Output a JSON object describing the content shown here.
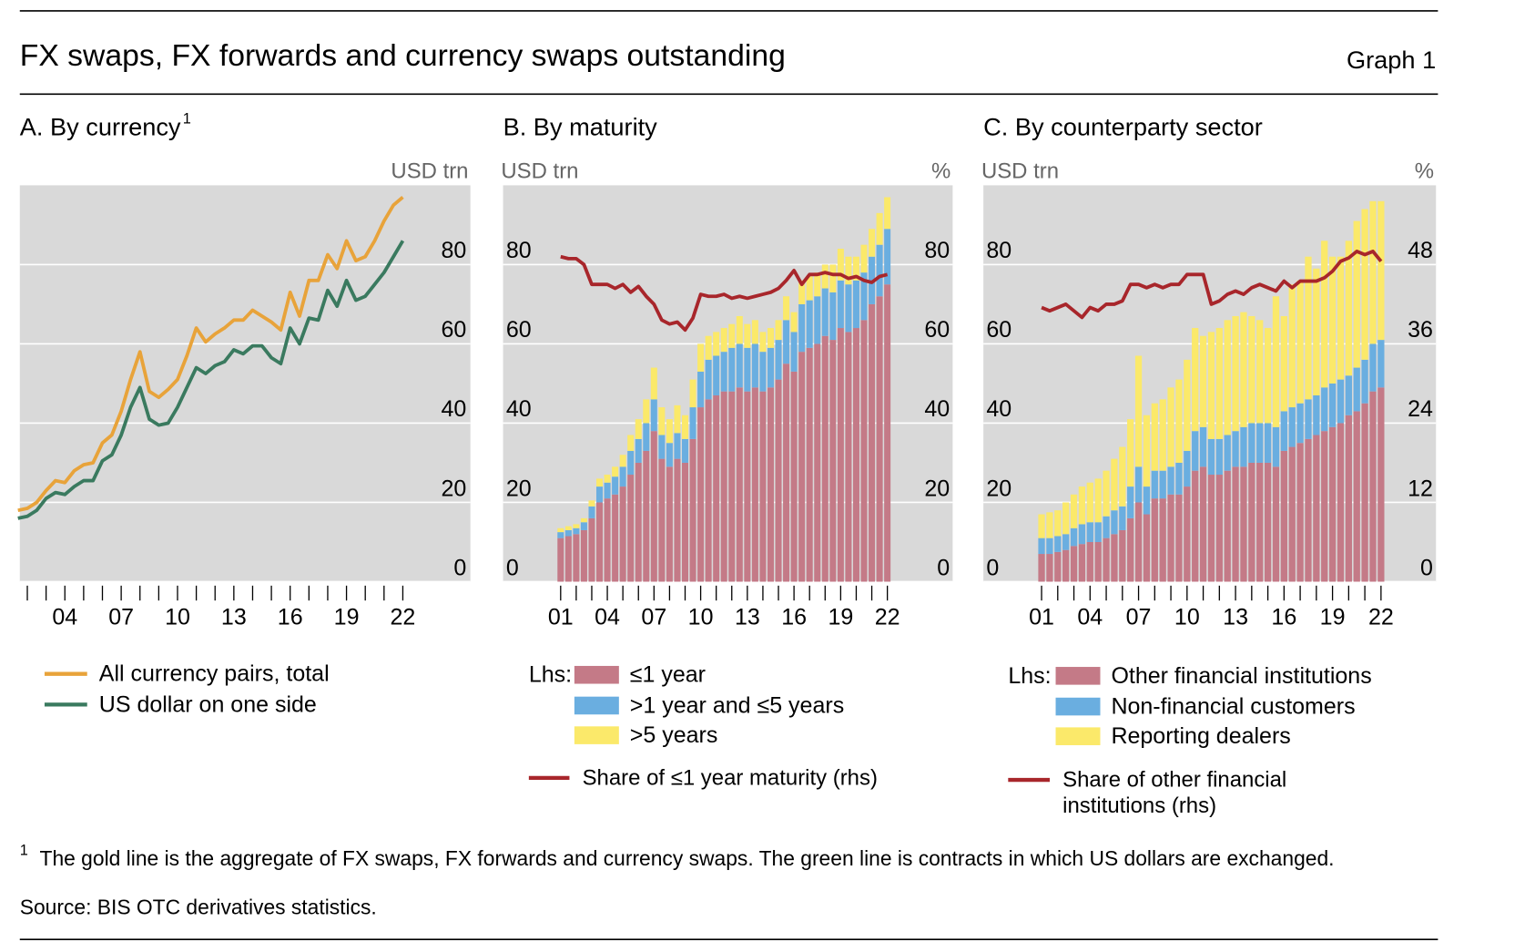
{
  "header": {
    "title": "FX swaps, FX forwards and currency swaps outstanding",
    "graph_label": "Graph 1"
  },
  "chart_data": [
    {
      "type": "line",
      "title": "A. By currency",
      "title_note": "1",
      "ylabel": "USD trn",
      "x": [
        2001.5,
        2002,
        2002.5,
        2003,
        2003.5,
        2004,
        2004.5,
        2005,
        2005.5,
        2006,
        2006.5,
        2007,
        2007.5,
        2008,
        2008.5,
        2009,
        2009.5,
        2010,
        2010.5,
        2011,
        2011.5,
        2012,
        2012.5,
        2013,
        2013.5,
        2014,
        2014.5,
        2015,
        2015.5,
        2016,
        2016.5,
        2017,
        2017.5,
        2018,
        2018.5,
        2019,
        2019.5,
        2020,
        2020.5,
        2021,
        2021.5,
        2022
      ],
      "xlim": [
        2001.6,
        2025.6
      ],
      "xticks": [
        {
          "value": 2004,
          "label": "04"
        },
        {
          "value": 2007,
          "label": "07"
        },
        {
          "value": 2010,
          "label": "10"
        },
        {
          "value": 2013,
          "label": "13"
        },
        {
          "value": 2016,
          "label": "16"
        },
        {
          "value": 2019,
          "label": "19"
        },
        {
          "value": 2022,
          "label": "22"
        }
      ],
      "xminor_ticks": [
        2002,
        2003,
        2005,
        2006,
        2008,
        2009,
        2011,
        2012,
        2014,
        2015,
        2017,
        2018,
        2020,
        2021
      ],
      "ylim": [
        0,
        100
      ],
      "yticks": [
        0,
        20,
        40,
        60,
        80
      ],
      "grid": true,
      "series": [
        {
          "name": "All currency pairs, total",
          "type": "line",
          "color": "#e8a33a",
          "values": [
            18,
            18.5,
            20,
            23,
            25.5,
            25,
            28,
            29.5,
            30,
            35,
            37,
            43,
            51,
            58,
            48,
            46.5,
            48.5,
            51,
            57,
            64,
            60.5,
            62.5,
            64,
            66,
            66,
            68.5,
            67,
            65.5,
            63.5,
            73,
            67,
            76,
            76,
            82.5,
            79,
            86,
            81,
            82,
            86,
            91,
            95,
            97
          ]
        },
        {
          "name": "US dollar on one side",
          "type": "line",
          "color": "#3a7a5f",
          "values": [
            16,
            16.5,
            18,
            21,
            22.5,
            22,
            24,
            25.5,
            25.5,
            30.5,
            32,
            37,
            44,
            49,
            41,
            39.5,
            40,
            44,
            49,
            54,
            52.5,
            54.5,
            55.5,
            58.5,
            57.5,
            59.5,
            59.5,
            56.5,
            55,
            64,
            60,
            66.5,
            66,
            73.5,
            69.5,
            76,
            71,
            72,
            75,
            78,
            82,
            86
          ]
        }
      ]
    },
    {
      "type": "bar",
      "stacked": true,
      "title": "B. By maturity",
      "ylabel": "USD trn",
      "y2label": "%",
      "legend_prefix": "Lhs:",
      "x": [
        2001,
        2001.5,
        2002,
        2002.5,
        2003,
        2003.5,
        2004,
        2004.5,
        2005,
        2005.5,
        2006,
        2006.5,
        2007,
        2007.5,
        2008,
        2008.5,
        2009,
        2009.5,
        2010,
        2010.5,
        2011,
        2011.5,
        2012,
        2012.5,
        2013,
        2013.5,
        2014,
        2014.5,
        2015,
        2015.5,
        2016,
        2016.5,
        2017,
        2017.5,
        2018,
        2018.5,
        2019,
        2019.5,
        2020,
        2020.5,
        2021,
        2021.5,
        2022
      ],
      "xlim": [
        1997.3,
        2026.2
      ],
      "xticks": [
        {
          "value": 2001,
          "label": "01"
        },
        {
          "value": 2004,
          "label": "04"
        },
        {
          "value": 2007,
          "label": "07"
        },
        {
          "value": 2010,
          "label": "10"
        },
        {
          "value": 2013,
          "label": "13"
        },
        {
          "value": 2016,
          "label": "16"
        },
        {
          "value": 2019,
          "label": "19"
        },
        {
          "value": 2022,
          "label": "22"
        }
      ],
      "xminor_ticks": [
        2002,
        2003,
        2005,
        2006,
        2008,
        2009,
        2011,
        2012,
        2014,
        2015,
        2017,
        2018,
        2020,
        2021
      ],
      "ylim": [
        0,
        100
      ],
      "yticks": [
        0,
        20,
        40,
        60,
        80
      ],
      "y2lim": [
        0,
        100
      ],
      "y2ticks": [
        0,
        20,
        40,
        60,
        80
      ],
      "grid": true,
      "series": [
        {
          "name": "≤1 year",
          "type": "bar",
          "color": "#c47a87",
          "values": [
            11,
            11.5,
            12,
            13,
            16,
            20,
            21,
            22,
            24,
            27,
            30,
            33,
            38,
            31,
            29,
            31,
            30,
            36,
            44,
            46,
            47,
            48,
            48,
            49,
            48,
            49,
            48,
            49,
            51,
            55,
            53,
            58,
            59,
            60,
            62,
            61,
            64,
            63,
            64,
            66,
            70,
            72,
            75
          ]
        },
        {
          "name": ">1 year and ≤5 years",
          "type": "bar",
          "color": "#6aaee0",
          "values": [
            1.5,
            1.5,
            1.5,
            2,
            3,
            4,
            4,
            4.5,
            5,
            6,
            6,
            7,
            8,
            6,
            6,
            6.5,
            6,
            8,
            9,
            10,
            10,
            10,
            11,
            11,
            11,
            11,
            10,
            10,
            10,
            11,
            10,
            12,
            12,
            12,
            12,
            12,
            12,
            12,
            12,
            12,
            12,
            13,
            14
          ]
        },
        {
          "name": ">5 years",
          "type": "bar",
          "color": "#fbe96a",
          "values": [
            1,
            1,
            1,
            1,
            1.5,
            2,
            2,
            2.5,
            3,
            4,
            5,
            6,
            8,
            7,
            6,
            7,
            6,
            7,
            7,
            6,
            6,
            6,
            6,
            7,
            6,
            6,
            5,
            5,
            5,
            6,
            5,
            6,
            6,
            6,
            6,
            7,
            8,
            7,
            6,
            7,
            7,
            8,
            8
          ]
        },
        {
          "name": "Share of ≤1 year maturity (rhs)",
          "type": "line",
          "axis": "y2",
          "color": "#a8262b",
          "values": [
            82,
            81.5,
            81.5,
            80,
            75,
            75,
            75,
            74,
            75,
            73,
            74.5,
            72,
            70,
            66,
            65,
            65.5,
            63.5,
            66.5,
            72.5,
            72,
            72,
            72.5,
            71.5,
            72,
            71.5,
            72,
            72.5,
            73,
            74,
            76,
            78.5,
            75,
            77.5,
            77.5,
            78,
            77.5,
            77.5,
            76.5,
            77,
            76,
            75.5,
            77,
            77.5
          ]
        }
      ]
    },
    {
      "type": "bar",
      "stacked": true,
      "title": "C. By counterparty sector",
      "ylabel": "USD trn",
      "y2label": "%",
      "legend_prefix": "Lhs:",
      "x": [
        2001,
        2001.5,
        2002,
        2002.5,
        2003,
        2003.5,
        2004,
        2004.5,
        2005,
        2005.5,
        2006,
        2006.5,
        2007,
        2007.5,
        2008,
        2008.5,
        2009,
        2009.5,
        2010,
        2010.5,
        2011,
        2011.5,
        2012,
        2012.5,
        2013,
        2013.5,
        2014,
        2014.5,
        2015,
        2015.5,
        2016,
        2016.5,
        2017,
        2017.5,
        2018,
        2018.5,
        2019,
        2019.5,
        2020,
        2020.5,
        2021,
        2021.5,
        2022
      ],
      "xlim": [
        1997.4,
        2025.4
      ],
      "xticks": [
        {
          "value": 2001,
          "label": "01"
        },
        {
          "value": 2004,
          "label": "04"
        },
        {
          "value": 2007,
          "label": "07"
        },
        {
          "value": 2010,
          "label": "10"
        },
        {
          "value": 2013,
          "label": "13"
        },
        {
          "value": 2016,
          "label": "16"
        },
        {
          "value": 2019,
          "label": "19"
        },
        {
          "value": 2022,
          "label": "22"
        }
      ],
      "xminor_ticks": [
        2002,
        2003,
        2005,
        2006,
        2008,
        2009,
        2011,
        2012,
        2014,
        2015,
        2017,
        2018,
        2020,
        2021
      ],
      "ylim": [
        0,
        100
      ],
      "yticks": [
        0,
        20,
        40,
        60,
        80
      ],
      "y2lim": [
        0,
        60
      ],
      "y2ticks": [
        0,
        12,
        24,
        36,
        48
      ],
      "grid": true,
      "series": [
        {
          "name": "Other financial institutions",
          "type": "bar",
          "color": "#c47a87",
          "values": [
            7,
            7,
            7.5,
            8,
            9,
            9.5,
            10,
            10,
            11,
            12,
            13,
            16,
            20,
            17,
            21,
            21,
            22,
            22,
            24,
            28,
            29,
            27,
            27,
            28,
            29,
            29,
            30,
            30,
            30,
            29,
            33,
            34,
            35,
            36,
            37,
            38,
            39,
            40,
            42,
            43,
            45,
            48,
            49
          ]
        },
        {
          "name": "Non-financial customers",
          "type": "bar",
          "color": "#6aaee0",
          "values": [
            4,
            4,
            4,
            4,
            4.5,
            5,
            5,
            5,
            5.5,
            6,
            6,
            8,
            9,
            7,
            7,
            7,
            7,
            8,
            9,
            10,
            10,
            9,
            9,
            9,
            9,
            10,
            10,
            10,
            10,
            10,
            10,
            10,
            10,
            10,
            10,
            11,
            11,
            11,
            10,
            11,
            11,
            12,
            12
          ]
        },
        {
          "name": "Reporting dealers",
          "type": "bar",
          "color": "#fbe96a",
          "values": [
            6,
            6.5,
            6.5,
            8,
            8.5,
            9.5,
            10,
            11,
            11.5,
            13,
            15,
            17,
            28,
            18,
            17,
            18,
            20,
            21,
            23,
            26,
            23,
            27,
            28,
            29,
            29,
            29,
            27,
            26,
            24,
            33,
            24,
            31,
            31,
            36,
            32,
            37,
            32,
            31,
            34,
            37,
            38,
            36,
            35
          ]
        },
        {
          "name": "Share of other financial institutions (rhs)",
          "type": "line",
          "axis": "y2",
          "color": "#a8262b",
          "values": [
            41.5,
            41,
            41.5,
            42,
            41,
            40,
            41.5,
            41,
            42,
            42,
            42.5,
            45,
            45,
            44.5,
            45,
            44.5,
            45,
            45,
            46.5,
            46.5,
            46.5,
            42,
            42.5,
            43.5,
            44,
            43.5,
            44.5,
            45,
            44.5,
            44,
            45.5,
            44.5,
            45.5,
            45.5,
            45.5,
            46,
            47,
            48.5,
            49,
            50,
            49.5,
            50,
            48.5
          ]
        }
      ]
    }
  ],
  "footnotes": [
    {
      "marker": "1",
      "text": "The gold line is the aggregate of FX swaps, FX forwards and currency swaps. The green line is contracts in which US dollars are exchanged."
    }
  ],
  "source": "Source: BIS OTC derivatives statistics."
}
